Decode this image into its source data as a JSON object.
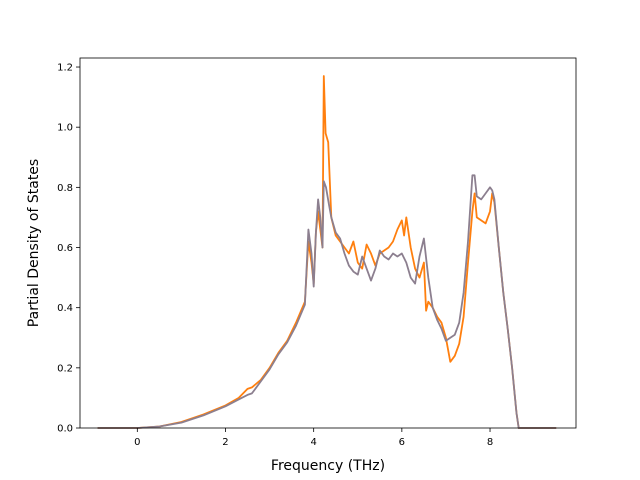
{
  "chart_data": {
    "type": "line",
    "title": "",
    "xlabel": "Frequency (THz)",
    "ylabel": "Partial Density of States",
    "xlim": [
      -1.3,
      9.95
    ],
    "ylim": [
      0,
      1.23
    ],
    "xticks": [
      0,
      2,
      4,
      6,
      8
    ],
    "yticks": [
      0.0,
      0.2,
      0.4,
      0.6,
      0.8,
      1.0,
      1.2
    ],
    "xtick_labels": [
      "0",
      "2",
      "4",
      "6",
      "8"
    ],
    "ytick_labels": [
      "0.0",
      "0.2",
      "0.4",
      "0.6",
      "0.8",
      "1.0",
      "1.2"
    ],
    "grid": false,
    "legend": "none",
    "series": [
      {
        "color": "#ff7f0e",
        "points": [
          [
            -0.9,
            0
          ],
          [
            0,
            0
          ],
          [
            0.5,
            0.005
          ],
          [
            1.0,
            0.02
          ],
          [
            1.5,
            0.045
          ],
          [
            2.0,
            0.075
          ],
          [
            2.3,
            0.1
          ],
          [
            2.4,
            0.115
          ],
          [
            2.5,
            0.13
          ],
          [
            2.6,
            0.135
          ],
          [
            2.8,
            0.16
          ],
          [
            3.0,
            0.2
          ],
          [
            3.2,
            0.25
          ],
          [
            3.4,
            0.29
          ],
          [
            3.6,
            0.35
          ],
          [
            3.8,
            0.42
          ],
          [
            3.88,
            0.62
          ],
          [
            3.95,
            0.55
          ],
          [
            4.0,
            0.48
          ],
          [
            4.05,
            0.65
          ],
          [
            4.1,
            0.72
          ],
          [
            4.15,
            0.66
          ],
          [
            4.2,
            0.6
          ],
          [
            4.23,
            1.17
          ],
          [
            4.27,
            0.98
          ],
          [
            4.33,
            0.95
          ],
          [
            4.4,
            0.7
          ],
          [
            4.5,
            0.64
          ],
          [
            4.6,
            0.62
          ],
          [
            4.7,
            0.6
          ],
          [
            4.8,
            0.58
          ],
          [
            4.9,
            0.62
          ],
          [
            5.0,
            0.55
          ],
          [
            5.1,
            0.53
          ],
          [
            5.2,
            0.61
          ],
          [
            5.3,
            0.58
          ],
          [
            5.4,
            0.54
          ],
          [
            5.5,
            0.58
          ],
          [
            5.6,
            0.59
          ],
          [
            5.7,
            0.6
          ],
          [
            5.8,
            0.62
          ],
          [
            5.9,
            0.66
          ],
          [
            6.0,
            0.69
          ],
          [
            6.05,
            0.64
          ],
          [
            6.1,
            0.7
          ],
          [
            6.2,
            0.6
          ],
          [
            6.3,
            0.53
          ],
          [
            6.4,
            0.5
          ],
          [
            6.5,
            0.55
          ],
          [
            6.55,
            0.39
          ],
          [
            6.6,
            0.42
          ],
          [
            6.7,
            0.4
          ],
          [
            6.8,
            0.37
          ],
          [
            6.9,
            0.35
          ],
          [
            7.0,
            0.3
          ],
          [
            7.1,
            0.22
          ],
          [
            7.2,
            0.24
          ],
          [
            7.3,
            0.28
          ],
          [
            7.4,
            0.37
          ],
          [
            7.5,
            0.55
          ],
          [
            7.6,
            0.72
          ],
          [
            7.65,
            0.78
          ],
          [
            7.7,
            0.7
          ],
          [
            7.8,
            0.69
          ],
          [
            7.9,
            0.68
          ],
          [
            8.0,
            0.72
          ],
          [
            8.05,
            0.78
          ],
          [
            8.1,
            0.75
          ],
          [
            8.2,
            0.6
          ],
          [
            8.3,
            0.45
          ],
          [
            8.4,
            0.33
          ],
          [
            8.5,
            0.2
          ],
          [
            8.6,
            0.05
          ],
          [
            8.65,
            0
          ],
          [
            9.5,
            0
          ]
        ]
      },
      {
        "color": "#8c7f8f",
        "points": [
          [
            -0.9,
            0
          ],
          [
            0,
            0
          ],
          [
            0.5,
            0.005
          ],
          [
            1.0,
            0.018
          ],
          [
            1.5,
            0.042
          ],
          [
            2.0,
            0.072
          ],
          [
            2.3,
            0.095
          ],
          [
            2.5,
            0.11
          ],
          [
            2.6,
            0.115
          ],
          [
            2.8,
            0.155
          ],
          [
            3.0,
            0.195
          ],
          [
            3.2,
            0.245
          ],
          [
            3.4,
            0.285
          ],
          [
            3.6,
            0.34
          ],
          [
            3.8,
            0.41
          ],
          [
            3.88,
            0.66
          ],
          [
            3.95,
            0.58
          ],
          [
            4.0,
            0.47
          ],
          [
            4.05,
            0.65
          ],
          [
            4.1,
            0.76
          ],
          [
            4.15,
            0.7
          ],
          [
            4.2,
            0.6
          ],
          [
            4.23,
            0.82
          ],
          [
            4.28,
            0.8
          ],
          [
            4.35,
            0.74
          ],
          [
            4.4,
            0.7
          ],
          [
            4.5,
            0.65
          ],
          [
            4.6,
            0.63
          ],
          [
            4.7,
            0.58
          ],
          [
            4.8,
            0.54
          ],
          [
            4.9,
            0.52
          ],
          [
            5.0,
            0.51
          ],
          [
            5.1,
            0.57
          ],
          [
            5.2,
            0.53
          ],
          [
            5.3,
            0.49
          ],
          [
            5.4,
            0.53
          ],
          [
            5.5,
            0.59
          ],
          [
            5.6,
            0.57
          ],
          [
            5.7,
            0.56
          ],
          [
            5.8,
            0.58
          ],
          [
            5.9,
            0.57
          ],
          [
            6.0,
            0.58
          ],
          [
            6.1,
            0.55
          ],
          [
            6.2,
            0.5
          ],
          [
            6.3,
            0.48
          ],
          [
            6.4,
            0.57
          ],
          [
            6.5,
            0.63
          ],
          [
            6.6,
            0.5
          ],
          [
            6.7,
            0.4
          ],
          [
            6.8,
            0.36
          ],
          [
            6.9,
            0.33
          ],
          [
            7.0,
            0.29
          ],
          [
            7.1,
            0.3
          ],
          [
            7.2,
            0.31
          ],
          [
            7.3,
            0.35
          ],
          [
            7.4,
            0.45
          ],
          [
            7.5,
            0.62
          ],
          [
            7.6,
            0.84
          ],
          [
            7.65,
            0.84
          ],
          [
            7.7,
            0.77
          ],
          [
            7.8,
            0.76
          ],
          [
            7.9,
            0.78
          ],
          [
            8.0,
            0.8
          ],
          [
            8.05,
            0.79
          ],
          [
            8.1,
            0.76
          ],
          [
            8.2,
            0.6
          ],
          [
            8.3,
            0.45
          ],
          [
            8.4,
            0.33
          ],
          [
            8.5,
            0.2
          ],
          [
            8.6,
            0.05
          ],
          [
            8.65,
            0
          ],
          [
            9.5,
            0
          ]
        ]
      }
    ]
  }
}
